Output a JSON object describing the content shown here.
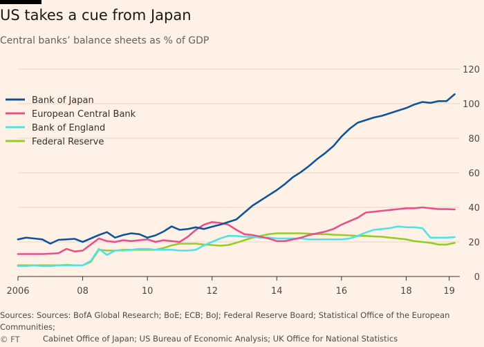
{
  "header": {
    "title": "US takes a cue from Japan",
    "subtitle": "Central banks’ balance sheets as % of GDP"
  },
  "footer": {
    "source_line1": "Sources: Sources: BofA Global Research; BoE; ECB; BoJ; Federal Reserve Board; Statistical Office of the European Communities;",
    "source_line2": "Cabinet Office of Japan; US Bureau of Economic Analysis; UK Office for National Statistics",
    "credit": "© FT"
  },
  "chart_data": {
    "type": "line",
    "x_tick_labels": [
      "2006",
      "08",
      "10",
      "12",
      "14",
      "16",
      "18",
      "19"
    ],
    "x_ticks": [
      2006,
      2008,
      2010,
      2012,
      2014,
      2016,
      2018,
      2019.33
    ],
    "xlim": [
      2006,
      2019.7
    ],
    "ylim": [
      0,
      120
    ],
    "y_ticks": [
      0,
      20,
      40,
      60,
      80,
      100,
      120
    ],
    "grid": true,
    "y_axis_side": "right",
    "legend_position": "top-left",
    "series": [
      {
        "name": "Bank of Japan",
        "color": "#0f5499",
        "points": [
          [
            2006,
            21.5
          ],
          [
            2006.25,
            22.5
          ],
          [
            2006.5,
            22
          ],
          [
            2006.75,
            21.5
          ],
          [
            2007,
            19
          ],
          [
            2007.25,
            21.2
          ],
          [
            2007.5,
            21.5
          ],
          [
            2007.75,
            21.8
          ],
          [
            2008,
            20
          ],
          [
            2008.25,
            22
          ],
          [
            2008.5,
            24
          ],
          [
            2008.75,
            25.7
          ],
          [
            2009,
            22.5
          ],
          [
            2009.25,
            24
          ],
          [
            2009.5,
            25
          ],
          [
            2009.75,
            24.5
          ],
          [
            2010,
            22.5
          ],
          [
            2010.25,
            23.8
          ],
          [
            2010.5,
            26
          ],
          [
            2010.75,
            29
          ],
          [
            2011,
            27
          ],
          [
            2011.25,
            27.5
          ],
          [
            2011.5,
            28.5
          ],
          [
            2011.75,
            27.5
          ],
          [
            2012,
            28.8
          ],
          [
            2012.25,
            30
          ],
          [
            2012.5,
            31.5
          ],
          [
            2012.75,
            33
          ],
          [
            2013,
            37
          ],
          [
            2013.25,
            41
          ],
          [
            2013.5,
            44
          ],
          [
            2013.75,
            47
          ],
          [
            2014,
            50
          ],
          [
            2014.25,
            53.5
          ],
          [
            2014.5,
            57.5
          ],
          [
            2014.75,
            60.5
          ],
          [
            2015,
            64
          ],
          [
            2015.25,
            68
          ],
          [
            2015.5,
            71.5
          ],
          [
            2015.75,
            75.5
          ],
          [
            2016,
            81
          ],
          [
            2016.25,
            85.5
          ],
          [
            2016.5,
            89
          ],
          [
            2016.75,
            90.5
          ],
          [
            2017,
            92
          ],
          [
            2017.25,
            93
          ],
          [
            2017.5,
            94.5
          ],
          [
            2017.75,
            96
          ],
          [
            2018,
            97.5
          ],
          [
            2018.25,
            99.5
          ],
          [
            2018.5,
            101
          ],
          [
            2018.75,
            100.5
          ],
          [
            2019,
            101.5
          ],
          [
            2019.25,
            101.5
          ],
          [
            2019.5,
            105.5
          ]
        ]
      },
      {
        "name": "European Central Bank",
        "color": "#e5518d",
        "points": [
          [
            2006,
            13
          ],
          [
            2006.25,
            13
          ],
          [
            2006.5,
            13
          ],
          [
            2006.75,
            13
          ],
          [
            2007,
            13.2
          ],
          [
            2007.25,
            13.5
          ],
          [
            2007.5,
            16
          ],
          [
            2007.75,
            14.5
          ],
          [
            2008,
            15
          ],
          [
            2008.25,
            18.5
          ],
          [
            2008.5,
            22
          ],
          [
            2008.75,
            20.5
          ],
          [
            2009,
            20
          ],
          [
            2009.25,
            21
          ],
          [
            2009.5,
            20.5
          ],
          [
            2009.75,
            21
          ],
          [
            2010,
            21.5
          ],
          [
            2010.25,
            20
          ],
          [
            2010.5,
            21
          ],
          [
            2010.75,
            20.5
          ],
          [
            2011,
            20
          ],
          [
            2011.25,
            23
          ],
          [
            2011.5,
            27
          ],
          [
            2011.75,
            30
          ],
          [
            2012,
            31.5
          ],
          [
            2012.25,
            31
          ],
          [
            2012.5,
            30
          ],
          [
            2012.75,
            27
          ],
          [
            2013,
            24.5
          ],
          [
            2013.25,
            24
          ],
          [
            2013.5,
            23
          ],
          [
            2013.75,
            22
          ],
          [
            2014,
            20.5
          ],
          [
            2014.25,
            20.5
          ],
          [
            2014.5,
            21.5
          ],
          [
            2014.75,
            22.5
          ],
          [
            2015,
            24
          ],
          [
            2015.25,
            25
          ],
          [
            2015.5,
            26
          ],
          [
            2015.75,
            27.5
          ],
          [
            2016,
            30
          ],
          [
            2016.25,
            32
          ],
          [
            2016.5,
            34
          ],
          [
            2016.75,
            37
          ],
          [
            2017,
            37.5
          ],
          [
            2017.25,
            38
          ],
          [
            2017.5,
            38.5
          ],
          [
            2017.75,
            39
          ],
          [
            2018,
            39.5
          ],
          [
            2018.25,
            39.5
          ],
          [
            2018.5,
            40
          ],
          [
            2018.75,
            39.5
          ],
          [
            2019,
            39
          ],
          [
            2019.25,
            39
          ],
          [
            2019.5,
            38.8
          ]
        ]
      },
      {
        "name": "Bank of England",
        "color": "#4fe3e8",
        "points": [
          [
            2006,
            6
          ],
          [
            2006.25,
            6
          ],
          [
            2006.5,
            6.5
          ],
          [
            2006.75,
            6
          ],
          [
            2007,
            6
          ],
          [
            2007.25,
            6.5
          ],
          [
            2007.5,
            6.5
          ],
          [
            2007.75,
            6.5
          ],
          [
            2008,
            6.5
          ],
          [
            2008.25,
            9
          ],
          [
            2008.5,
            16
          ],
          [
            2008.75,
            12.5
          ],
          [
            2009,
            15
          ],
          [
            2009.25,
            15
          ],
          [
            2009.5,
            15.5
          ],
          [
            2009.75,
            16
          ],
          [
            2010,
            16
          ],
          [
            2010.25,
            15.5
          ],
          [
            2010.5,
            15.5
          ],
          [
            2010.75,
            15.5
          ],
          [
            2011,
            15
          ],
          [
            2011.25,
            15
          ],
          [
            2011.5,
            15.5
          ],
          [
            2011.75,
            18
          ],
          [
            2012,
            20
          ],
          [
            2012.25,
            22
          ],
          [
            2012.5,
            23.5
          ],
          [
            2012.75,
            23.5
          ],
          [
            2013,
            23
          ],
          [
            2013.25,
            23
          ],
          [
            2013.5,
            22.5
          ],
          [
            2013.75,
            22.5
          ],
          [
            2014,
            22
          ],
          [
            2014.25,
            22
          ],
          [
            2014.5,
            22
          ],
          [
            2014.75,
            22
          ],
          [
            2015,
            21.5
          ],
          [
            2015.25,
            21.5
          ],
          [
            2015.5,
            21.5
          ],
          [
            2015.75,
            21.5
          ],
          [
            2016,
            21.5
          ],
          [
            2016.25,
            22
          ],
          [
            2016.5,
            23.5
          ],
          [
            2016.75,
            25.5
          ],
          [
            2017,
            27
          ],
          [
            2017.25,
            27.5
          ],
          [
            2017.5,
            28
          ],
          [
            2017.75,
            29
          ],
          [
            2018,
            28.5
          ],
          [
            2018.25,
            28.5
          ],
          [
            2018.5,
            28
          ],
          [
            2018.75,
            22.5
          ],
          [
            2019,
            22.5
          ],
          [
            2019.25,
            22.5
          ],
          [
            2019.5,
            22.8
          ]
        ]
      },
      {
        "name": "Federal Reserve",
        "color": "#96cc28",
        "points": [
          [
            2006,
            6.5
          ],
          [
            2006.25,
            6.5
          ],
          [
            2006.5,
            6.5
          ],
          [
            2006.75,
            6.5
          ],
          [
            2007,
            6.5
          ],
          [
            2007.25,
            6.5
          ],
          [
            2007.5,
            6.8
          ],
          [
            2007.75,
            6.5
          ],
          [
            2008,
            6.5
          ],
          [
            2008.25,
            8.5
          ],
          [
            2008.5,
            15.5
          ],
          [
            2008.75,
            15
          ],
          [
            2009,
            15
          ],
          [
            2009.25,
            15.5
          ],
          [
            2009.5,
            15.5
          ],
          [
            2009.75,
            15.5
          ],
          [
            2010,
            15.5
          ],
          [
            2010.25,
            15.5
          ],
          [
            2010.5,
            16.5
          ],
          [
            2010.75,
            18
          ],
          [
            2011,
            19
          ],
          [
            2011.25,
            19
          ],
          [
            2011.5,
            19
          ],
          [
            2011.75,
            18.5
          ],
          [
            2012,
            18.2
          ],
          [
            2012.25,
            17.8
          ],
          [
            2012.5,
            18.2
          ],
          [
            2012.75,
            19.5
          ],
          [
            2013,
            21
          ],
          [
            2013.25,
            22.5
          ],
          [
            2013.5,
            23.5
          ],
          [
            2013.75,
            24.5
          ],
          [
            2014,
            25
          ],
          [
            2014.25,
            25
          ],
          [
            2014.5,
            25
          ],
          [
            2014.75,
            25
          ],
          [
            2015,
            24.8
          ],
          [
            2015.25,
            24.5
          ],
          [
            2015.5,
            24.5
          ],
          [
            2015.75,
            24.2
          ],
          [
            2016,
            24
          ],
          [
            2016.25,
            23.8
          ],
          [
            2016.5,
            23.5
          ],
          [
            2016.75,
            23.5
          ],
          [
            2017,
            23.2
          ],
          [
            2017.25,
            23
          ],
          [
            2017.5,
            22.5
          ],
          [
            2017.75,
            22
          ],
          [
            2018,
            21.5
          ],
          [
            2018.25,
            20.5
          ],
          [
            2018.5,
            20
          ],
          [
            2018.75,
            19.5
          ],
          [
            2019,
            18.5
          ],
          [
            2019.25,
            18.5
          ],
          [
            2019.5,
            19.5
          ]
        ]
      }
    ]
  }
}
